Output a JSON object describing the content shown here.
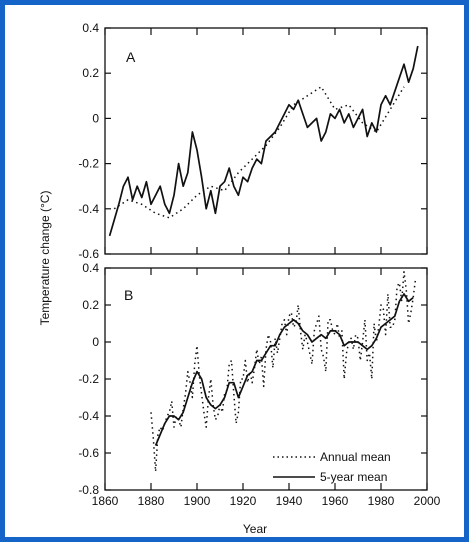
{
  "figure": {
    "xlabel": "Year",
    "ylabel": "Temperature change (°C)",
    "border_color": "#1565c8"
  },
  "chart_data": [
    {
      "type": "line",
      "panel_label": "A",
      "xlim": [
        1860,
        2000
      ],
      "ylim": [
        -0.6,
        0.4
      ],
      "x_ticks": [],
      "y_ticks": [
        "0.4",
        "0.2",
        "0",
        "-0.2",
        "-0.4",
        "-0.6"
      ],
      "y_tick_values": [
        0.4,
        0.2,
        0,
        -0.2,
        -0.4,
        -0.6
      ],
      "series": [
        {
          "style": "solid",
          "x": [
            1862,
            1864,
            1866,
            1868,
            1870,
            1872,
            1874,
            1876,
            1878,
            1880,
            1882,
            1884,
            1886,
            1888,
            1890,
            1892,
            1894,
            1896,
            1898,
            1900,
            1902,
            1904,
            1906,
            1908,
            1910,
            1912,
            1914,
            1916,
            1918,
            1920,
            1922,
            1924,
            1926,
            1928,
            1930,
            1932,
            1934,
            1936,
            1938,
            1940,
            1942,
            1944,
            1946,
            1948,
            1950,
            1952,
            1954,
            1956,
            1958,
            1960,
            1962,
            1964,
            1966,
            1968,
            1970,
            1972,
            1974,
            1976,
            1978,
            1980,
            1982,
            1984,
            1986,
            1988,
            1990,
            1992,
            1994,
            1996
          ],
          "y": [
            -0.52,
            -0.45,
            -0.38,
            -0.3,
            -0.26,
            -0.36,
            -0.3,
            -0.35,
            -0.28,
            -0.38,
            -0.34,
            -0.3,
            -0.38,
            -0.42,
            -0.34,
            -0.2,
            -0.3,
            -0.24,
            -0.06,
            -0.14,
            -0.26,
            -0.4,
            -0.32,
            -0.42,
            -0.3,
            -0.28,
            -0.22,
            -0.3,
            -0.34,
            -0.26,
            -0.28,
            -0.22,
            -0.18,
            -0.2,
            -0.1,
            -0.08,
            -0.06,
            -0.02,
            0.02,
            0.06,
            0.04,
            0.08,
            0.02,
            -0.04,
            -0.02,
            0.0,
            -0.1,
            -0.06,
            0.02,
            0.0,
            0.04,
            -0.02,
            0.02,
            -0.04,
            0.0,
            0.04,
            -0.08,
            -0.02,
            -0.06,
            0.06,
            0.1,
            0.06,
            0.12,
            0.18,
            0.24,
            0.16,
            0.22,
            0.32
          ]
        },
        {
          "style": "dotted",
          "x": [
            1864,
            1870,
            1876,
            1882,
            1888,
            1894,
            1900,
            1906,
            1912,
            1918,
            1924,
            1930,
            1936,
            1942,
            1948,
            1954,
            1960,
            1966,
            1972,
            1978,
            1984,
            1990
          ],
          "y": [
            -0.4,
            -0.36,
            -0.38,
            -0.42,
            -0.44,
            -0.4,
            -0.34,
            -0.3,
            -0.32,
            -0.24,
            -0.18,
            -0.12,
            -0.04,
            0.06,
            0.1,
            0.14,
            0.04,
            0.06,
            -0.02,
            -0.06,
            0.04,
            0.14
          ]
        }
      ]
    },
    {
      "type": "line",
      "panel_label": "B",
      "xlim": [
        1860,
        2000
      ],
      "ylim": [
        -0.8,
        0.4
      ],
      "x_ticks": [
        "1860",
        "1880",
        "1900",
        "1920",
        "1940",
        "1960",
        "1980",
        "2000"
      ],
      "x_tick_values": [
        1860,
        1880,
        1900,
        1920,
        1940,
        1960,
        1980,
        2000
      ],
      "y_ticks": [
        "0.4",
        "0.2",
        "0",
        "-0.2",
        "-0.4",
        "-0.6",
        "-0.8"
      ],
      "y_tick_values": [
        0.4,
        0.2,
        0,
        -0.2,
        -0.4,
        -0.6,
        -0.8
      ],
      "legend": {
        "placement": "bottom-right",
        "entries": [
          "Annual mean",
          "5-year mean"
        ]
      },
      "series": [
        {
          "name": "Annual mean",
          "style": "dotted",
          "x": [
            1880,
            1881,
            1882,
            1883,
            1884,
            1885,
            1886,
            1887,
            1888,
            1889,
            1890,
            1891,
            1892,
            1893,
            1894,
            1895,
            1896,
            1897,
            1898,
            1899,
            1900,
            1901,
            1902,
            1903,
            1904,
            1905,
            1906,
            1907,
            1908,
            1909,
            1910,
            1911,
            1912,
            1913,
            1914,
            1915,
            1916,
            1917,
            1918,
            1919,
            1920,
            1921,
            1922,
            1923,
            1924,
            1925,
            1926,
            1927,
            1928,
            1929,
            1930,
            1931,
            1932,
            1933,
            1934,
            1935,
            1936,
            1937,
            1938,
            1939,
            1940,
            1941,
            1942,
            1943,
            1944,
            1945,
            1946,
            1947,
            1948,
            1949,
            1950,
            1951,
            1952,
            1953,
            1954,
            1955,
            1956,
            1957,
            1958,
            1959,
            1960,
            1961,
            1962,
            1963,
            1964,
            1965,
            1966,
            1967,
            1968,
            1969,
            1970,
            1971,
            1972,
            1973,
            1974,
            1975,
            1976,
            1977,
            1978,
            1979,
            1980,
            1981,
            1982,
            1983,
            1984,
            1985,
            1986,
            1987,
            1988,
            1989,
            1990,
            1991,
            1992,
            1993,
            1994,
            1995
          ],
          "y": [
            -0.38,
            -0.52,
            -0.7,
            -0.5,
            -0.46,
            -0.48,
            -0.44,
            -0.4,
            -0.38,
            -0.32,
            -0.46,
            -0.4,
            -0.42,
            -0.46,
            -0.36,
            -0.28,
            -0.16,
            -0.22,
            -0.3,
            -0.12,
            -0.02,
            -0.18,
            -0.28,
            -0.38,
            -0.46,
            -0.3,
            -0.2,
            -0.34,
            -0.42,
            -0.4,
            -0.34,
            -0.38,
            -0.28,
            -0.26,
            -0.12,
            -0.1,
            -0.28,
            -0.44,
            -0.38,
            -0.2,
            -0.2,
            -0.1,
            -0.22,
            -0.16,
            -0.22,
            -0.14,
            -0.04,
            -0.12,
            -0.08,
            -0.24,
            -0.04,
            0.04,
            0.0,
            -0.14,
            0.02,
            -0.06,
            0.02,
            0.1,
            0.12,
            0.04,
            0.14,
            0.16,
            0.08,
            0.1,
            0.2,
            0.06,
            -0.04,
            0.04,
            0.0,
            -0.06,
            -0.12,
            0.06,
            0.1,
            0.14,
            -0.04,
            -0.08,
            -0.16,
            0.12,
            0.12,
            0.06,
            0.04,
            0.1,
            0.02,
            0.06,
            -0.2,
            -0.06,
            0.0,
            0.02,
            -0.04,
            0.04,
            0.02,
            -0.1,
            0.0,
            0.12,
            -0.1,
            -0.06,
            -0.2,
            0.1,
            0.0,
            0.08,
            0.2,
            0.18,
            0.04,
            0.26,
            0.08,
            0.08,
            0.12,
            0.3,
            0.32,
            0.22,
            0.38,
            0.28,
            0.1,
            0.16,
            0.24,
            0.34
          ]
        },
        {
          "name": "5-year mean",
          "style": "solid",
          "x": [
            1882,
            1884,
            1886,
            1888,
            1890,
            1892,
            1894,
            1896,
            1898,
            1900,
            1902,
            1904,
            1906,
            1908,
            1910,
            1912,
            1914,
            1916,
            1918,
            1920,
            1922,
            1924,
            1926,
            1928,
            1930,
            1932,
            1934,
            1936,
            1938,
            1940,
            1942,
            1944,
            1946,
            1948,
            1950,
            1952,
            1954,
            1956,
            1958,
            1960,
            1962,
            1964,
            1966,
            1968,
            1970,
            1972,
            1974,
            1976,
            1978,
            1980,
            1982,
            1984,
            1986,
            1988,
            1990,
            1992,
            1994
          ],
          "y": [
            -0.56,
            -0.5,
            -0.44,
            -0.4,
            -0.4,
            -0.42,
            -0.38,
            -0.3,
            -0.22,
            -0.16,
            -0.2,
            -0.3,
            -0.34,
            -0.36,
            -0.34,
            -0.3,
            -0.22,
            -0.22,
            -0.3,
            -0.24,
            -0.18,
            -0.16,
            -0.1,
            -0.1,
            -0.06,
            -0.02,
            -0.02,
            0.04,
            0.08,
            0.1,
            0.12,
            0.1,
            0.06,
            0.04,
            0.0,
            0.02,
            0.04,
            0.02,
            0.06,
            0.06,
            0.04,
            -0.02,
            0.0,
            0.0,
            0.0,
            -0.02,
            -0.04,
            -0.02,
            0.02,
            0.08,
            0.1,
            0.12,
            0.14,
            0.22,
            0.26,
            0.22,
            0.24
          ]
        }
      ]
    }
  ]
}
